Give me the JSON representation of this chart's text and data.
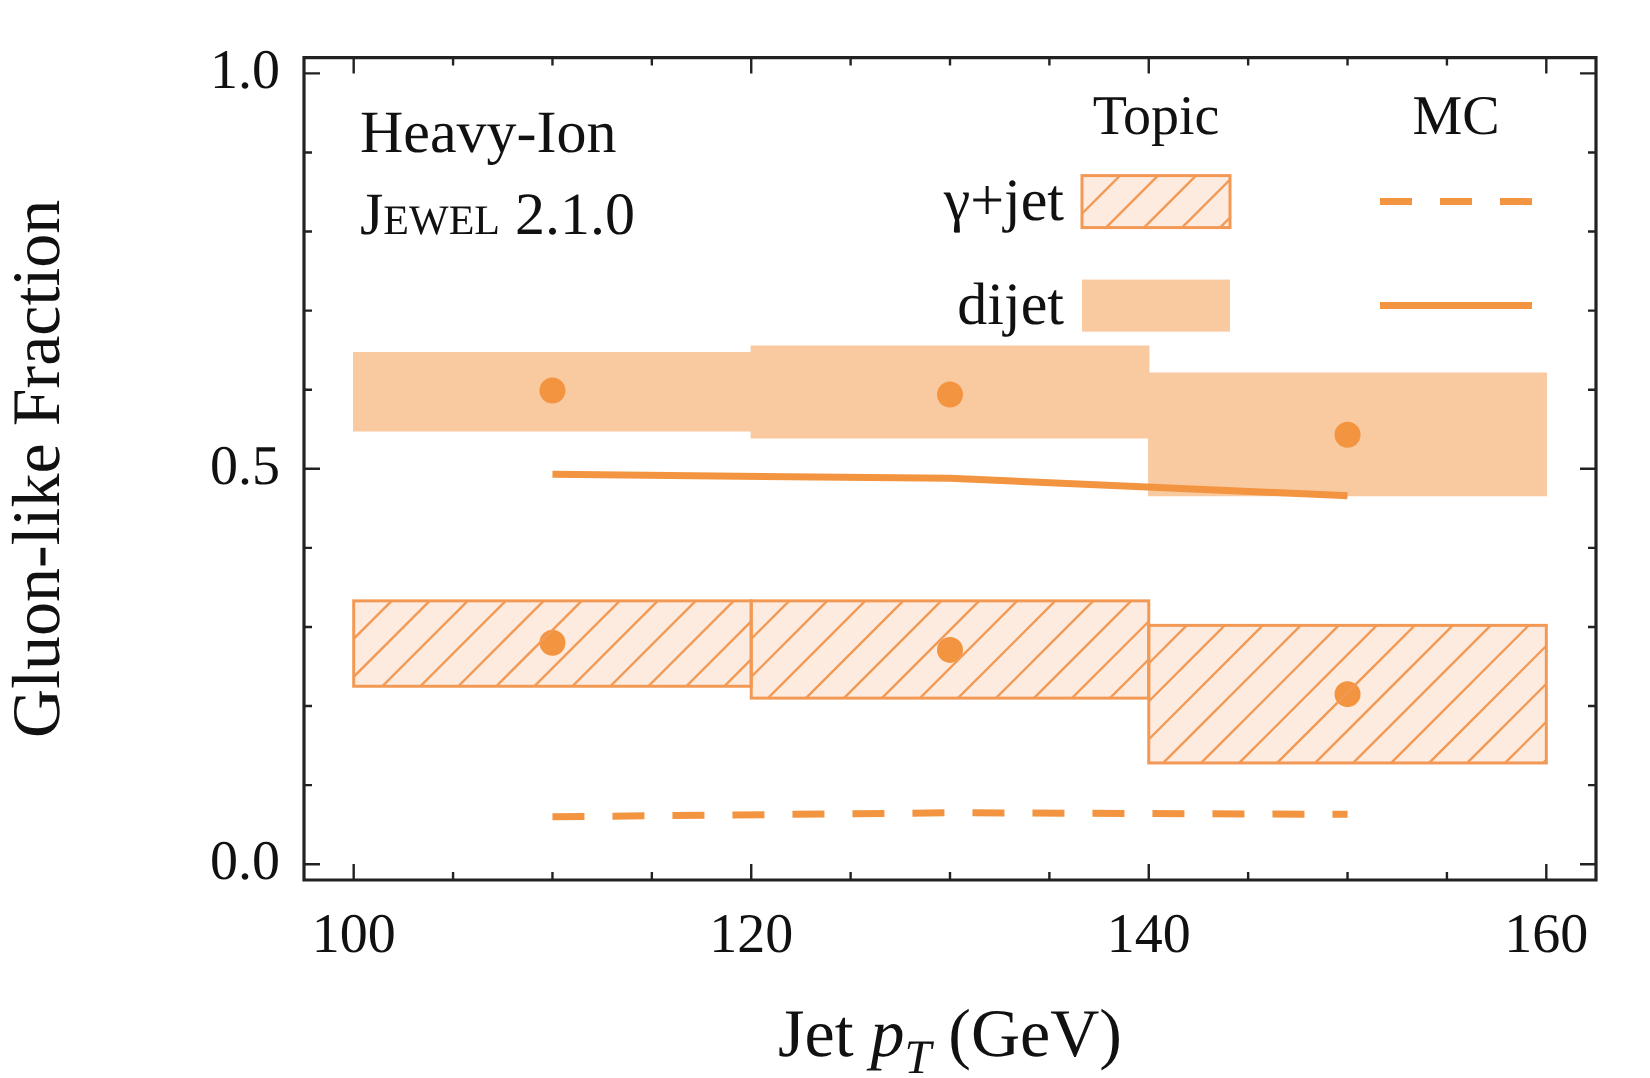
{
  "chart_data": {
    "type": "bar",
    "xlabel": "Jet p$_{T}$ (GeV)",
    "ylabel": "Gluon-like Fraction",
    "annotations": [
      "Heavy-Ion",
      "Jewel 2.1.0",
      "Topic",
      "MC"
    ],
    "xlim": [
      97.5,
      162.5
    ],
    "ylim": [
      -0.02,
      1.02
    ],
    "xticks": [
      100,
      {
        "value": 105,
        "label": null
      },
      {
        "value": 110,
        "label": null
      },
      {
        "value": 115,
        "label": null
      },
      120,
      {
        "value": 125,
        "label": null
      },
      {
        "value": 130,
        "label": null
      },
      {
        "value": 135,
        "label": null
      },
      140,
      {
        "value": 145,
        "label": null
      },
      {
        "value": 150,
        "label": null
      },
      {
        "value": 155,
        "label": null
      },
      160
    ],
    "yticks": [
      {
        "value": 0,
        "label": "0.0"
      },
      {
        "value": 0.1,
        "label": null
      },
      {
        "value": 0.2,
        "label": null
      },
      {
        "value": 0.3,
        "label": null
      },
      {
        "value": 0.4,
        "label": null
      },
      0.5,
      {
        "value": 0.6,
        "label": null
      },
      {
        "value": 0.7,
        "label": null
      },
      {
        "value": 0.8,
        "label": null
      },
      {
        "value": 0.9,
        "label": null
      },
      {
        "value": 1,
        "label": "1.0"
      }
    ],
    "legend": "top right",
    "grid": false,
    "series": [
      {
        "type": "bar",
        "name": "γ+jet",
        "color": "#fdebe0",
        "x": [
          110,
          130,
          150
        ],
        "base": [
          0.225,
          0.21,
          0.128
        ],
        "values": [
          0.108,
          0.123,
          0.174
        ]
      },
      {
        "type": "bar",
        "name": "dijet",
        "color": "#f9c9a0",
        "x": [
          110,
          130,
          150
        ],
        "base": [
          0.548,
          0.539,
          0.466
        ],
        "values": [
          0.099,
          0.116,
          0.155
        ]
      },
      {
        "type": "line",
        "color": "#f39440",
        "line_style": "dashed",
        "marker": "none",
        "x": [
          110,
          130,
          150
        ],
        "values": [
          0.06,
          0.065,
          0.063
        ]
      },
      {
        "type": "line",
        "color": "#f39440",
        "line_style": "solid",
        "marker": "none",
        "x": [
          110,
          130,
          150
        ],
        "values": [
          0.493,
          0.488,
          0.466
        ]
      },
      {
        "type": "scatter",
        "color": "#f39440",
        "marker": "circle",
        "x": [
          110,
          130,
          150
        ],
        "values": [
          0.28,
          0.271,
          0.215
        ]
      },
      {
        "type": "scatter",
        "color": "#f39440",
        "marker": "circle",
        "x": [
          110,
          130,
          150
        ],
        "values": [
          0.599,
          0.594,
          0.543
        ]
      }
    ]
  }
}
